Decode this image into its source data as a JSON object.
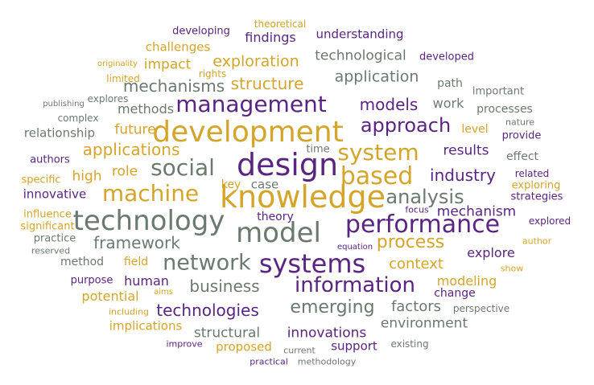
{
  "palette": {
    "gold": "#D4A52A",
    "purple": "#5A2582",
    "gray": "#6B7A6E"
  },
  "words": [
    {
      "text": "development",
      "color": "gold"
    },
    {
      "text": "knowledge",
      "color": "gold"
    },
    {
      "text": "design",
      "color": "purple"
    },
    {
      "text": "technology",
      "color": "gray"
    },
    {
      "text": "model",
      "color": "gray"
    },
    {
      "text": "systems",
      "color": "purple"
    },
    {
      "text": "performance",
      "color": "purple"
    },
    {
      "text": "management",
      "color": "purple"
    },
    {
      "text": "based",
      "color": "gold"
    },
    {
      "text": "system",
      "color": "gold"
    },
    {
      "text": "social",
      "color": "gray"
    },
    {
      "text": "machine",
      "color": "gold"
    },
    {
      "text": "network",
      "color": "gray"
    },
    {
      "text": "information",
      "color": "purple"
    },
    {
      "text": "approach",
      "color": "purple"
    },
    {
      "text": "analysis",
      "color": "gray"
    },
    {
      "text": "process",
      "color": "gold"
    },
    {
      "text": "applications",
      "color": "gold"
    },
    {
      "text": "models",
      "color": "purple"
    },
    {
      "text": "industry",
      "color": "purple"
    },
    {
      "text": "technologies",
      "color": "purple"
    },
    {
      "text": "emerging",
      "color": "gray"
    },
    {
      "text": "business",
      "color": "gray"
    },
    {
      "text": "framework",
      "color": "gray"
    },
    {
      "text": "structure",
      "color": "gold"
    },
    {
      "text": "mechanisms",
      "color": "gray"
    },
    {
      "text": "exploration",
      "color": "gold"
    },
    {
      "text": "application",
      "color": "gray"
    },
    {
      "text": "technological",
      "color": "gray"
    },
    {
      "text": "context",
      "color": "gold"
    },
    {
      "text": "mechanism",
      "color": "purple"
    },
    {
      "text": "results",
      "color": "purple"
    },
    {
      "text": "future",
      "color": "gold"
    },
    {
      "text": "methods",
      "color": "gray"
    },
    {
      "text": "role",
      "color": "gold"
    },
    {
      "text": "high",
      "color": "gold"
    },
    {
      "text": "work",
      "color": "gray"
    },
    {
      "text": "factors",
      "color": "gray"
    },
    {
      "text": "modeling",
      "color": "gold"
    },
    {
      "text": "explore",
      "color": "purple"
    },
    {
      "text": "environment",
      "color": "gray"
    },
    {
      "text": "innovations",
      "color": "purple"
    },
    {
      "text": "structural",
      "color": "gray"
    },
    {
      "text": "impact",
      "color": "gold"
    },
    {
      "text": "findings",
      "color": "purple"
    },
    {
      "text": "potential",
      "color": "gold"
    },
    {
      "text": "human",
      "color": "purple"
    },
    {
      "text": "understanding",
      "color": "purple"
    },
    {
      "text": "challenges",
      "color": "gold"
    },
    {
      "text": "relationship",
      "color": "gray"
    },
    {
      "text": "case",
      "color": "gray"
    },
    {
      "text": "key",
      "color": "gold"
    },
    {
      "text": "innovative",
      "color": "purple"
    },
    {
      "text": "implications",
      "color": "gold"
    },
    {
      "text": "proposed",
      "color": "gold"
    },
    {
      "text": "support",
      "color": "purple"
    },
    {
      "text": "change",
      "color": "purple"
    },
    {
      "text": "level",
      "color": "gold"
    },
    {
      "text": "processes",
      "color": "gray"
    },
    {
      "text": "path",
      "color": "gray"
    },
    {
      "text": "theory",
      "color": "purple"
    },
    {
      "text": "field",
      "color": "gold"
    },
    {
      "text": "method",
      "color": "gray"
    },
    {
      "text": "effect",
      "color": "gray"
    },
    {
      "text": "exploring",
      "color": "gold"
    },
    {
      "text": "strategies",
      "color": "purple"
    },
    {
      "text": "provide",
      "color": "purple"
    },
    {
      "text": "important",
      "color": "gray"
    },
    {
      "text": "developed",
      "color": "purple"
    },
    {
      "text": "developing",
      "color": "purple"
    },
    {
      "text": "theoretical",
      "color": "gold"
    },
    {
      "text": "limited",
      "color": "gold"
    },
    {
      "text": "rights",
      "color": "gold"
    },
    {
      "text": "originality",
      "color": "gold"
    },
    {
      "text": "explores",
      "color": "gray"
    },
    {
      "text": "publishing",
      "color": "gray"
    },
    {
      "text": "complex",
      "color": "gray"
    },
    {
      "text": "nature",
      "color": "gray"
    },
    {
      "text": "authors",
      "color": "purple"
    },
    {
      "text": "specific",
      "color": "gold"
    },
    {
      "text": "related",
      "color": "purple"
    },
    {
      "text": "time",
      "color": "gray"
    },
    {
      "text": "influence",
      "color": "gold"
    },
    {
      "text": "significant",
      "color": "gold"
    },
    {
      "text": "focus",
      "color": "purple"
    },
    {
      "text": "explored",
      "color": "purple"
    },
    {
      "text": "practice",
      "color": "gray"
    },
    {
      "text": "author",
      "color": "gold"
    },
    {
      "text": "reserved",
      "color": "gray"
    },
    {
      "text": "equation",
      "color": "purple"
    },
    {
      "text": "show",
      "color": "gold"
    },
    {
      "text": "purpose",
      "color": "purple"
    },
    {
      "text": "aims",
      "color": "gold"
    },
    {
      "text": "including",
      "color": "gold"
    },
    {
      "text": "perspective",
      "color": "gray"
    },
    {
      "text": "improve",
      "color": "purple"
    },
    {
      "text": "current",
      "color": "gray"
    },
    {
      "text": "existing",
      "color": "gray"
    },
    {
      "text": "practical",
      "color": "purple"
    },
    {
      "text": "methodology",
      "color": "gray"
    }
  ]
}
